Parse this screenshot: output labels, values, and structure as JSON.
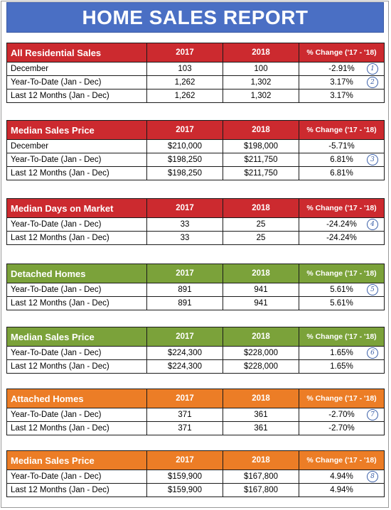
{
  "title": "HOME SALES REPORT",
  "sections": [
    {
      "header": "All Residential Sales",
      "col_2017": "2017",
      "col_2018": "2018",
      "col_change": "% Change ('17 - '18)",
      "theme": "red",
      "theme_color": "#cc2a2f",
      "rows": [
        {
          "label": "December",
          "v2017": "103",
          "v2018": "100",
          "change": "-2.91%",
          "note": "1"
        },
        {
          "label": "Year-To-Date (Jan - Dec)",
          "v2017": "1,262",
          "v2018": "1,302",
          "change": "3.17%",
          "note": "2"
        },
        {
          "label": "Last 12 Months (Jan - Dec)",
          "v2017": "1,262",
          "v2018": "1,302",
          "change": "3.17%",
          "note": ""
        }
      ]
    },
    {
      "header": "Median Sales Price",
      "col_2017": "2017",
      "col_2018": "2018",
      "col_change": "% Change ('17 - '18)",
      "theme": "red",
      "theme_color": "#cc2a2f",
      "rows": [
        {
          "label": "December",
          "v2017": "$210,000",
          "v2018": "$198,000",
          "change": "-5.71%",
          "note": ""
        },
        {
          "label": "Year-To-Date (Jan - Dec)",
          "v2017": "$198,250",
          "v2018": "$211,750",
          "change": "6.81%",
          "note": "3"
        },
        {
          "label": "Last 12 Months (Jan - Dec)",
          "v2017": "$198,250",
          "v2018": "$211,750",
          "change": "6.81%",
          "note": ""
        }
      ]
    },
    {
      "header": "Median Days on Market",
      "col_2017": "2017",
      "col_2018": "2018",
      "col_change": "% Change ('17 - '18)",
      "theme": "red",
      "theme_color": "#cc2a2f",
      "rows": [
        {
          "label": "Year-To-Date (Jan - Dec)",
          "v2017": "33",
          "v2018": "25",
          "change": "-24.24%",
          "note": "4"
        },
        {
          "label": "Last 12 Months (Jan - Dec)",
          "v2017": "33",
          "v2018": "25",
          "change": "-24.24%",
          "note": ""
        }
      ]
    },
    {
      "header": "Detached Homes",
      "col_2017": "2017",
      "col_2018": "2018",
      "col_change": "% Change ('17 - '18)",
      "theme": "green",
      "theme_color": "#7ba23a",
      "rows": [
        {
          "label": "Year-To-Date (Jan - Dec)",
          "v2017": "891",
          "v2018": "941",
          "change": "5.61%",
          "note": "5"
        },
        {
          "label": "Last 12 Months (Jan - Dec)",
          "v2017": "891",
          "v2018": "941",
          "change": "5.61%",
          "note": ""
        }
      ]
    },
    {
      "header": "Median Sales Price",
      "col_2017": "2017",
      "col_2018": "2018",
      "col_change": "% Change ('17 - '18)",
      "theme": "green",
      "theme_color": "#7ba23a",
      "rows": [
        {
          "label": "Year-To-Date (Jan - Dec)",
          "v2017": "$224,300",
          "v2018": "$228,000",
          "change": "1.65%",
          "note": "6"
        },
        {
          "label": "Last 12 Months (Jan - Dec)",
          "v2017": "$224,300",
          "v2018": "$228,000",
          "change": "1.65%",
          "note": ""
        }
      ]
    },
    {
      "header": "Attached Homes",
      "col_2017": "2017",
      "col_2018": "2018",
      "col_change": "% Change ('17 - '18)",
      "theme": "orange",
      "theme_color": "#ec7d26",
      "rows": [
        {
          "label": "Year-To-Date (Jan - Dec)",
          "v2017": "371",
          "v2018": "361",
          "change": "-2.70%",
          "note": "7"
        },
        {
          "label": "Last 12 Months (Jan - Dec)",
          "v2017": "371",
          "v2018": "361",
          "change": "-2.70%",
          "note": ""
        }
      ]
    },
    {
      "header": "Median Sales Price",
      "col_2017": "2017",
      "col_2018": "2018",
      "col_change": "% Change ('17 - '18)",
      "theme": "orange",
      "theme_color": "#ec7d26",
      "rows": [
        {
          "label": "Year-To-Date (Jan - Dec)",
          "v2017": "$159,900",
          "v2018": "$167,800",
          "change": "4.94%",
          "note": "8"
        },
        {
          "label": "Last 12 Months (Jan - Dec)",
          "v2017": "$159,900",
          "v2018": "$167,800",
          "change": "4.94%",
          "note": ""
        }
      ]
    }
  ]
}
